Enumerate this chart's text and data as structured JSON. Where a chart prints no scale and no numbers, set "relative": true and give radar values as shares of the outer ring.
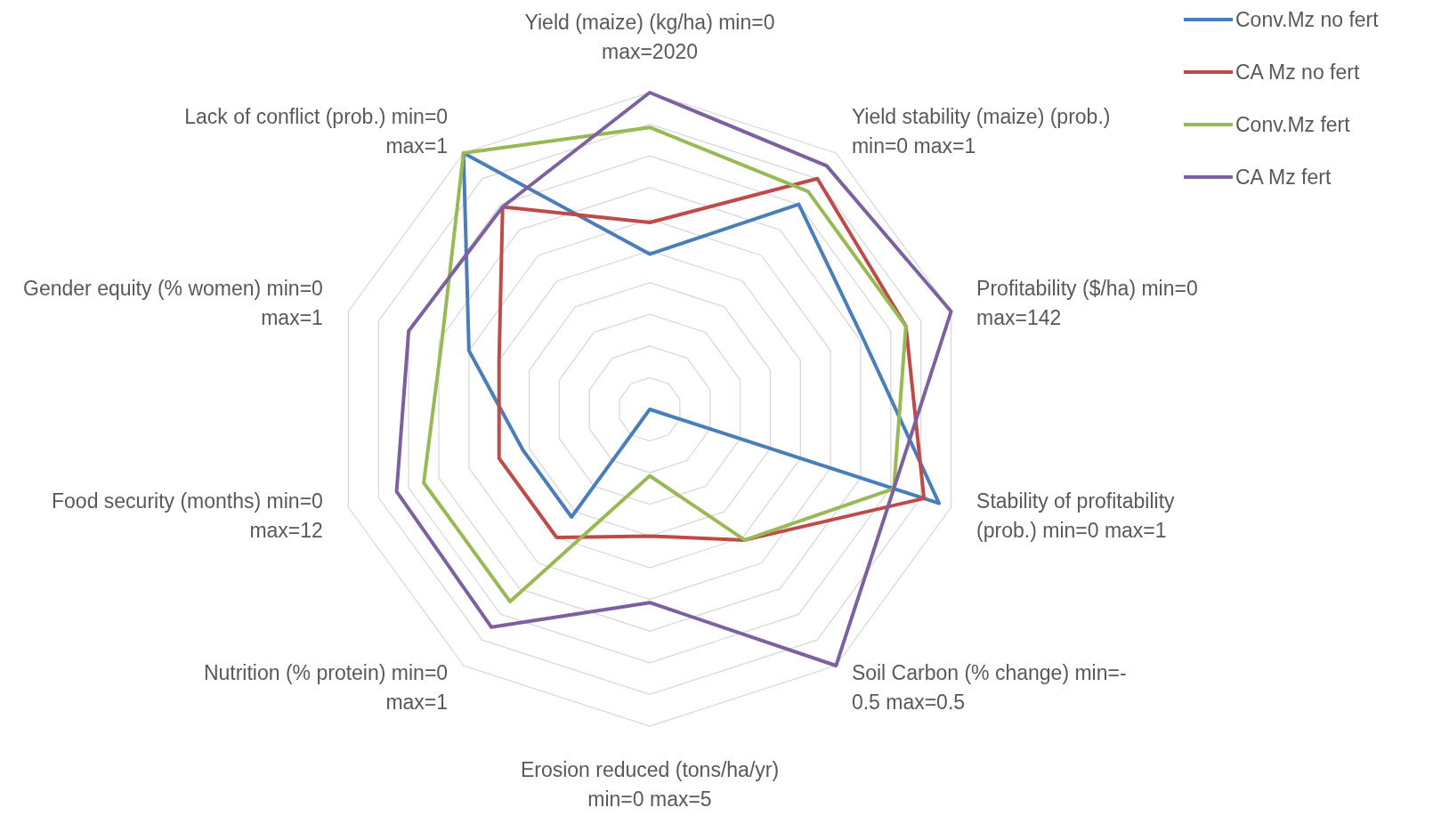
{
  "chart_data": {
    "type": "radar",
    "relative": true,
    "grid": true,
    "legend": "top right",
    "line_style": "solid",
    "marker": "none",
    "categories": [
      "Yield (maize) (kg/ha) min=0 max=2020",
      "Yield stability (maize) (prob.) min=0 max=1",
      "Profitability  ($/ha) min=0 max=142",
      "Stability of profitability (prob.) min=0 max=1",
      "Soil Carbon (% change) min=- 0.5 max=0.5",
      "Erosion reduced (tons/ha/yr) min=0 max=5",
      "Nutrition (% protein) min=0 max=1",
      "Food security (months) min=0 max=12",
      "Gender equity (% women) min=0 max=1",
      "Lack of conflict (prob.) min=0 max=1"
    ],
    "series": [
      {
        "name": "Conv.Mz no fert",
        "color": "#4a7ebb",
        "values": [
          0.49,
          0.8,
          0.71,
          0.96,
          0,
          0,
          0.42,
          0.42,
          0.6,
          1.0
        ]
      },
      {
        "name": "CA Mz no fert",
        "color": "#be4b48",
        "values": [
          0.59,
          0.9,
          0.85,
          0.91,
          0.51,
          0.4,
          0.5,
          0.5,
          0.5,
          0.79
        ]
      },
      {
        "name": "Conv.Mz fert",
        "color": "#98b954",
        "values": [
          0.89,
          0.85,
          0.85,
          0.81,
          0.51,
          0.21,
          0.75,
          0.75,
          0.69,
          1.0
        ]
      },
      {
        "name": "CA Mz fert",
        "color": "#7d60a0",
        "values": [
          1.0,
          0.95,
          1.0,
          0.81,
          1.0,
          0.61,
          0.85,
          0.84,
          0.8,
          0.79
        ]
      }
    ]
  }
}
